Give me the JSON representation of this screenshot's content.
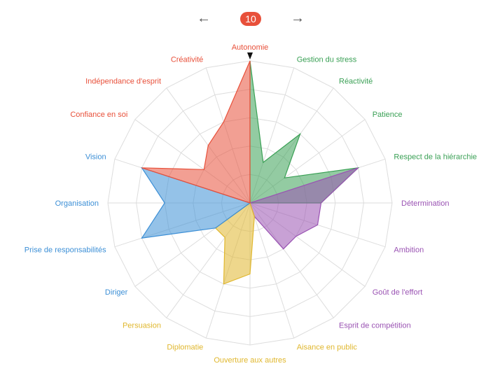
{
  "nav": {
    "prev_icon": "←",
    "next_icon": "→",
    "level": "10"
  },
  "colors": {
    "red": "#e8503a",
    "green": "#3aa055",
    "purple": "#9a53b3",
    "yellow": "#e0b72d",
    "blue": "#3c8fd6"
  },
  "chart_data": {
    "type": "radar",
    "max": 10,
    "grid_rings": 5,
    "grid": true,
    "axes": [
      {
        "label": "Autonomie",
        "group": "red",
        "value": 10
      },
      {
        "label": "Gestion du stress",
        "group": "green",
        "value": 3
      },
      {
        "label": "Réactivité",
        "group": "green",
        "value": 6
      },
      {
        "label": "Patience",
        "group": "green",
        "value": 3
      },
      {
        "label": "Respect de la hiérarchie",
        "group": "green",
        "value": 8
      },
      {
        "label": "Détermination",
        "group": "purple",
        "value": 5
      },
      {
        "label": "Ambition",
        "group": "purple",
        "value": 5
      },
      {
        "label": "Goût de l'effort",
        "group": "purple",
        "value": 4
      },
      {
        "label": "Esprit de compétition",
        "group": "purple",
        "value": 4
      },
      {
        "label": "Aisance en public",
        "group": "yellow",
        "value": 1
      },
      {
        "label": "Ouverture aux autres",
        "group": "yellow",
        "value": 5
      },
      {
        "label": "Diplomatie",
        "group": "yellow",
        "value": 6
      },
      {
        "label": "Persuasion",
        "group": "yellow",
        "value": 3
      },
      {
        "label": "Diriger",
        "group": "blue",
        "value": 3
      },
      {
        "label": "Prise de responsabilités",
        "group": "blue",
        "value": 8
      },
      {
        "label": "Organisation",
        "group": "blue",
        "value": 6
      },
      {
        "label": "Vision",
        "group": "blue",
        "value": 8
      },
      {
        "label": "Confiance en soi",
        "group": "red",
        "value": 4
      },
      {
        "label": "Indépendance d'esprit",
        "group": "red",
        "value": 5
      },
      {
        "label": "Créativité",
        "group": "red",
        "value": 6
      }
    ],
    "series": [
      {
        "group": "green",
        "color": "#3aa055",
        "axis_indices": [
          0,
          1,
          2,
          3,
          4,
          5
        ]
      },
      {
        "group": "purple",
        "color": "#9a53b3",
        "axis_indices": [
          4,
          5,
          6,
          7,
          8,
          9
        ]
      },
      {
        "group": "yellow",
        "color": "#e0b72d",
        "axis_indices": [
          9,
          10,
          11,
          12,
          13
        ]
      },
      {
        "group": "blue",
        "color": "#3c8fd6",
        "axis_indices": [
          13,
          14,
          15,
          16
        ]
      },
      {
        "group": "red",
        "color": "#e8503a",
        "axis_indices": [
          16,
          17,
          18,
          19,
          0
        ]
      }
    ]
  }
}
